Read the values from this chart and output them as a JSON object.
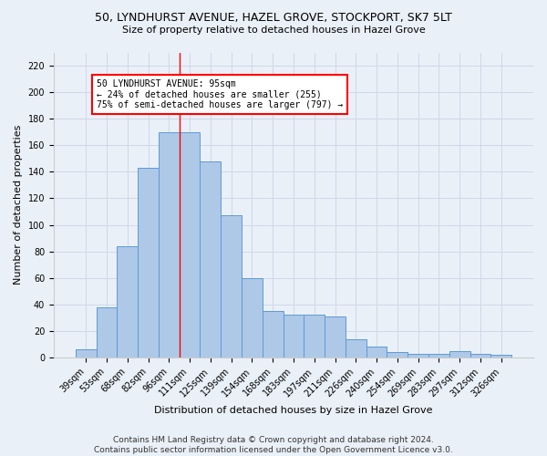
{
  "title": "50, LYNDHURST AVENUE, HAZEL GROVE, STOCKPORT, SK7 5LT",
  "subtitle": "Size of property relative to detached houses in Hazel Grove",
  "xlabel": "Distribution of detached houses by size in Hazel Grove",
  "ylabel": "Number of detached properties",
  "footer_line1": "Contains HM Land Registry data © Crown copyright and database right 2024.",
  "footer_line2": "Contains public sector information licensed under the Open Government Licence v3.0.",
  "categories": [
    "39sqm",
    "53sqm",
    "68sqm",
    "82sqm",
    "96sqm",
    "111sqm",
    "125sqm",
    "139sqm",
    "154sqm",
    "168sqm",
    "183sqm",
    "197sqm",
    "211sqm",
    "226sqm",
    "240sqm",
    "254sqm",
    "269sqm",
    "283sqm",
    "297sqm",
    "312sqm",
    "326sqm"
  ],
  "values": [
    6,
    38,
    84,
    143,
    170,
    170,
    148,
    107,
    60,
    35,
    32,
    32,
    31,
    14,
    8,
    4,
    3,
    3,
    5,
    3,
    2
  ],
  "bar_color": "#aec8e8",
  "bar_edge_color": "#5b9bd5",
  "grid_color": "#d0d8e8",
  "background_color": "#eaf0f8",
  "annotation_line1": "50 LYNDHURST AVENUE: 95sqm",
  "annotation_line2": "← 24% of detached houses are smaller (255)",
  "annotation_line3": "75% of semi-detached houses are larger (797) →",
  "annotation_box_color": "white",
  "annotation_box_edge_color": "red",
  "red_line_x": 4.5,
  "ylim": [
    0,
    230
  ],
  "yticks": [
    0,
    20,
    40,
    60,
    80,
    100,
    120,
    140,
    160,
    180,
    200,
    220
  ],
  "title_fontsize": 9,
  "subtitle_fontsize": 8,
  "ylabel_fontsize": 8,
  "xlabel_fontsize": 8,
  "tick_fontsize": 7,
  "footer_fontsize": 6.5
}
